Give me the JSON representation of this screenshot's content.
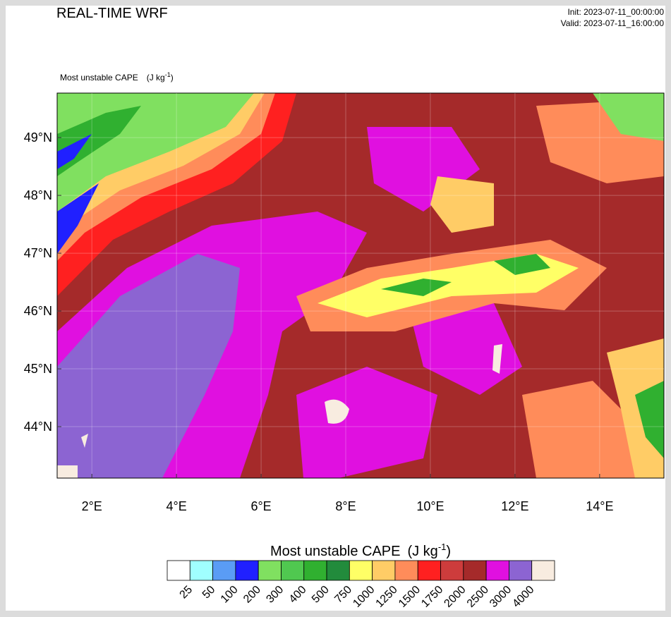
{
  "header": {
    "title": "REAL-TIME WRF",
    "init": "Init: 2023-07-11_00:00:00",
    "valid": "Valid: 2023-07-11_16:00:00"
  },
  "map": {
    "field_label": "Most unstable CAPE",
    "unit_base": "(J kg",
    "unit_exp": "-1",
    "unit_close": ")",
    "lonlim": [
      1.18,
      15.52
    ],
    "latlim": [
      43.11,
      49.77
    ],
    "lonticks": [
      {
        "value": 2,
        "label": "2°E"
      },
      {
        "value": 4,
        "label": "4°E"
      },
      {
        "value": 6,
        "label": "6°E"
      },
      {
        "value": 8,
        "label": "8°E"
      },
      {
        "value": 10,
        "label": "10°E"
      },
      {
        "value": 12,
        "label": "12°E"
      },
      {
        "value": 14,
        "label": "14°E"
      }
    ],
    "latticks": [
      {
        "value": 44,
        "label": "44°N"
      },
      {
        "value": 45,
        "label": "45°N"
      },
      {
        "value": 46,
        "label": "46°N"
      },
      {
        "value": 47,
        "label": "47°N"
      },
      {
        "value": 48,
        "label": "48°N"
      },
      {
        "value": 49,
        "label": "49°N"
      }
    ]
  },
  "colorbar": {
    "title": "Most unstable CAPE",
    "unit_base": "(J kg",
    "unit_exp": "-1",
    "unit_close": ")",
    "levels": [
      25,
      50,
      100,
      200,
      300,
      400,
      500,
      750,
      1000,
      1250,
      1500,
      1750,
      2000,
      2500,
      3000,
      4000
    ],
    "colors": [
      "#ffffff",
      "#a0ffff",
      "#5a9cf5",
      "#2020ff",
      "#80e060",
      "#50c850",
      "#30b030",
      "#228b3c",
      "#ffff66",
      "#ffcc66",
      "#ff8c5a",
      "#ff2020",
      "#cd3c3c",
      "#a52a2a",
      "#e010e0",
      "#8c64d2",
      "#f8ece0"
    ]
  }
}
